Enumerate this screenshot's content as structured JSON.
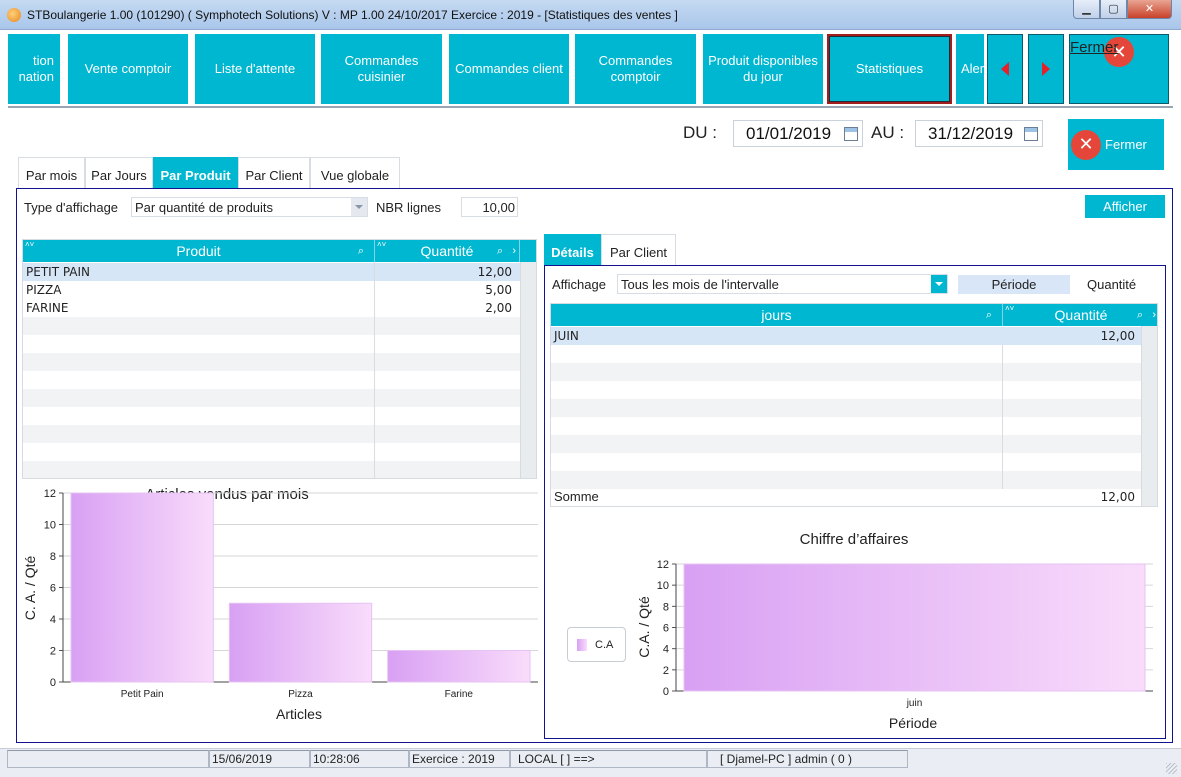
{
  "window": {
    "title": "STBoulangerie 1.00 (101290) ( Symphotech Solutions)  V : MP 1.00 24/10/2017 Exercice : 2019 - [Statistiques des ventes ]",
    "min": "0",
    "max": "1",
    "close": "X"
  },
  "toolbar": {
    "items": [
      {
        "label": "tion\nnation"
      },
      {
        "label": "Vente comptoir"
      },
      {
        "label": "Liste d'attente"
      },
      {
        "label": "Commandes\ncuisinier"
      },
      {
        "label": "Commandes client"
      },
      {
        "label": "Commandes\ncomptoir"
      },
      {
        "label": "Produit disponibles\ndu jour"
      },
      {
        "label": "Statistiques"
      },
      {
        "label": "Aler"
      }
    ],
    "close_label": "Fermer"
  },
  "dates": {
    "du_label": "DU :",
    "du_value": "01/01/2019",
    "au_label": "AU :",
    "au_value": "31/12/2019",
    "close_label": "Fermer"
  },
  "tabs": [
    "Par mois",
    "Par Jours",
    "Par Produit",
    "Par Client",
    "Vue globale"
  ],
  "filters": {
    "type_label": "Type d'affichage",
    "type_value": "Par quantité de produits",
    "nbr_label": "NBR lignes",
    "nbr_value": "10,00",
    "afficher": "Afficher"
  },
  "products_grid": {
    "columns": [
      "Produit",
      "Quantité"
    ],
    "rows": [
      {
        "produit": "PETIT PAIN",
        "quantite": "12,00"
      },
      {
        "produit": "PIZZA",
        "quantite": "5,00"
      },
      {
        "produit": "FARINE",
        "quantite": "2,00"
      }
    ]
  },
  "sub_tabs": [
    "Détails",
    "Par Client"
  ],
  "details": {
    "affichage_label": "Affichage",
    "affichage_value": "Tous les mois de l'intervalle",
    "periode": "Période",
    "quantite": "Quantité",
    "columns": [
      "jours",
      "Quantité"
    ],
    "rows": [
      {
        "jour": "JUIN",
        "quantite": "12,00"
      }
    ],
    "sum_label": "Somme",
    "sum_value": "12,00"
  },
  "legend": {
    "label": "C.A"
  },
  "status": {
    "date": "15/06/2019",
    "time": "10:28:06",
    "exercice": "Exercice : 2019",
    "local": "LOCAL [ ] ==>",
    "user": "[ Djamel-PC ] admin ( 0 )"
  },
  "colors": {
    "accent": "#00b7d1",
    "panel_border": "#13138f",
    "bar_start": "#d8a0f3",
    "bar_end": "#f9dcfb"
  },
  "chart_data": [
    {
      "type": "bar",
      "title": "Articles vendus par mois",
      "xlabel": "Articles",
      "ylabel": "C. A. / Qté",
      "categories": [
        "Petit Pain",
        "Pizza",
        "Farine"
      ],
      "values": [
        12,
        5,
        2
      ],
      "ylim": [
        0,
        12
      ],
      "yticks": [
        0,
        2,
        4,
        6,
        8,
        10,
        12
      ],
      "grid": true
    },
    {
      "type": "bar",
      "title": "Chiffre d’affaires",
      "xlabel": "Période",
      "ylabel": "C.A. / Qté",
      "categories": [
        "juin"
      ],
      "series": [
        {
          "name": "C.A",
          "values": [
            12
          ]
        }
      ],
      "ylim": [
        0,
        12
      ],
      "yticks": [
        0,
        2,
        4,
        6,
        8,
        10,
        12
      ],
      "grid": true,
      "legend": "left"
    }
  ]
}
